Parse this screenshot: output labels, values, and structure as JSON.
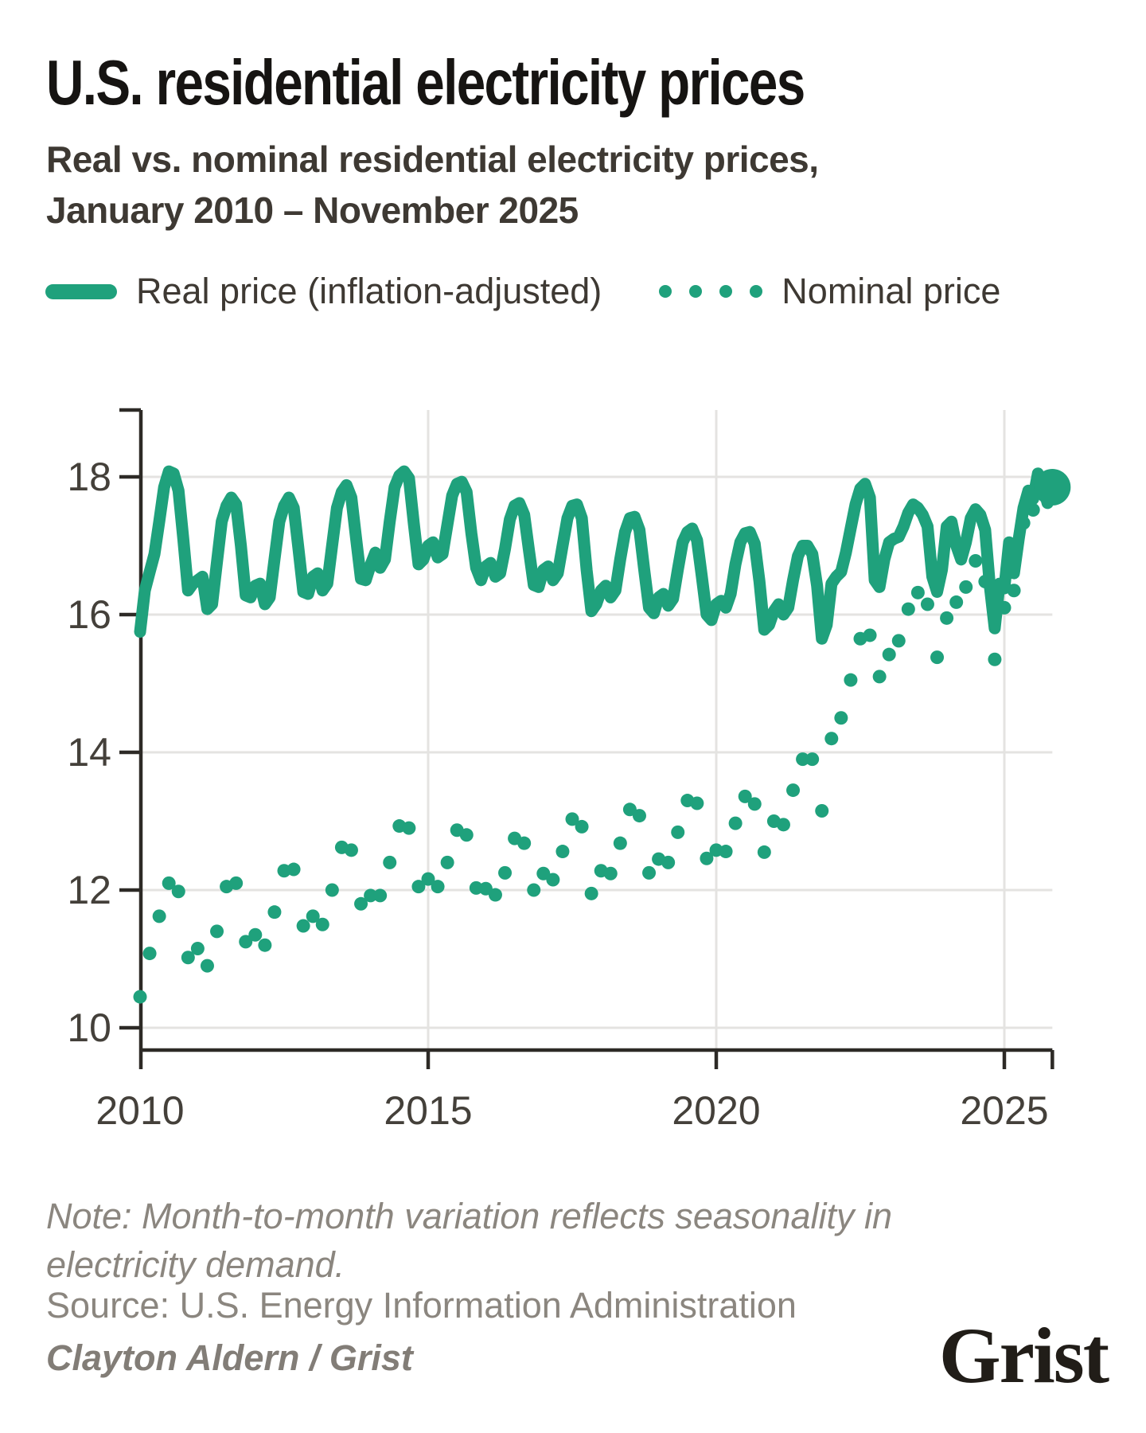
{
  "header": {
    "title": "U.S. residential electricity prices",
    "subtitle_line1": "Real vs. nominal residential electricity prices,",
    "subtitle_line2": "January 2010 – November 2025"
  },
  "legend": {
    "real_label": "Real price (inflation-adjusted)",
    "nominal_label": "Nominal price"
  },
  "footer": {
    "note_line1": "Note: Month-to-month variation reflects seasonality in",
    "note_line2": "electricity demand.",
    "source": "Source: U.S. Energy Information Administration",
    "credit": "Clayton Aldern / Grist",
    "logo": "Grist"
  },
  "colors": {
    "accent_green": "#1FA17C",
    "axis": "#2D2A26",
    "grid": "#E4E3E1",
    "tick_label": "#44403A",
    "title": "#161412",
    "subtitle": "#3E3933",
    "muted": "#8B867F"
  },
  "chart_data": {
    "type": "line",
    "title": "U.S. residential electricity prices",
    "x_start": "2010-01",
    "x_end": "2025-11",
    "frequency": "monthly",
    "xticks": [
      2010,
      2015,
      2020,
      2025
    ],
    "yticks": [
      18,
      16,
      14,
      12,
      10
    ],
    "ylim": [
      9.6,
      19.0
    ],
    "grid": true,
    "legend_position": "top",
    "end_marker_value": 17.85,
    "series": [
      {
        "name": "Real price (inflation-adjusted)",
        "style": "solid-line",
        "values": [
          15.75,
          16.35,
          16.62,
          16.88,
          17.35,
          17.85,
          18.08,
          18.05,
          17.8,
          17.1,
          16.35,
          16.45,
          16.5,
          16.55,
          16.08,
          16.15,
          16.75,
          17.35,
          17.58,
          17.7,
          17.6,
          17.0,
          16.28,
          16.25,
          16.42,
          16.45,
          16.15,
          16.25,
          16.8,
          17.35,
          17.58,
          17.7,
          17.55,
          16.95,
          16.33,
          16.3,
          16.55,
          16.6,
          16.35,
          16.45,
          17.0,
          17.55,
          17.78,
          17.88,
          17.7,
          17.1,
          16.52,
          16.5,
          16.72,
          16.9,
          16.68,
          16.8,
          17.35,
          17.85,
          18.02,
          18.08,
          17.98,
          17.33,
          16.73,
          16.8,
          17.0,
          17.05,
          16.83,
          16.88,
          17.3,
          17.73,
          17.9,
          17.93,
          17.78,
          17.18,
          16.68,
          16.5,
          16.7,
          16.75,
          16.55,
          16.6,
          16.95,
          17.38,
          17.58,
          17.62,
          17.45,
          16.93,
          16.43,
          16.4,
          16.65,
          16.7,
          16.5,
          16.6,
          17.0,
          17.4,
          17.58,
          17.6,
          17.4,
          16.65,
          16.05,
          16.15,
          16.35,
          16.42,
          16.25,
          16.35,
          16.8,
          17.2,
          17.4,
          17.42,
          17.23,
          16.65,
          16.1,
          16.02,
          16.25,
          16.3,
          16.13,
          16.23,
          16.65,
          17.05,
          17.2,
          17.25,
          17.08,
          16.55,
          16.0,
          15.92,
          16.15,
          16.2,
          16.1,
          16.3,
          16.73,
          17.05,
          17.18,
          17.2,
          17.03,
          16.48,
          15.78,
          15.85,
          16.05,
          16.15,
          16.0,
          16.1,
          16.5,
          16.85,
          17.0,
          17.0,
          16.88,
          16.42,
          15.65,
          15.85,
          16.45,
          16.55,
          16.62,
          16.9,
          17.25,
          17.6,
          17.83,
          17.9,
          17.7,
          16.5,
          16.4,
          16.8,
          17.05,
          17.1,
          17.13,
          17.28,
          17.48,
          17.6,
          17.55,
          17.45,
          17.28,
          16.55,
          16.33,
          16.65,
          17.28,
          17.35,
          17.0,
          16.8,
          17.05,
          17.4,
          17.53,
          17.45,
          17.23,
          16.4,
          15.8,
          16.45,
          16.38,
          17.05,
          16.6,
          17.1,
          17.55,
          17.8,
          17.68,
          18.05,
          17.88,
          17.62,
          17.85
        ]
      },
      {
        "name": "Nominal price",
        "style": "dotted",
        "values": [
          10.45,
          10.92,
          11.08,
          11.28,
          11.62,
          11.98,
          12.1,
          12.12,
          11.98,
          11.52,
          11.02,
          11.08,
          11.15,
          11.2,
          10.9,
          10.98,
          11.4,
          11.85,
          12.05,
          12.15,
          12.1,
          11.72,
          11.25,
          11.22,
          11.35,
          11.4,
          11.2,
          11.28,
          11.68,
          12.08,
          12.28,
          12.38,
          12.3,
          11.9,
          11.48,
          11.45,
          11.62,
          11.66,
          11.5,
          11.6,
          12.0,
          12.42,
          12.62,
          12.7,
          12.58,
          12.17,
          11.8,
          11.76,
          11.92,
          12.06,
          11.92,
          12.0,
          12.4,
          12.78,
          12.93,
          12.98,
          12.9,
          12.45,
          12.05,
          12.08,
          12.16,
          12.2,
          12.05,
          12.1,
          12.4,
          12.73,
          12.87,
          12.9,
          12.8,
          12.38,
          12.03,
          11.92,
          12.02,
          12.06,
          11.93,
          11.98,
          12.25,
          12.58,
          12.75,
          12.8,
          12.68,
          12.33,
          12.0,
          12.0,
          12.24,
          12.28,
          12.15,
          12.24,
          12.56,
          12.88,
          13.03,
          13.05,
          12.92,
          12.38,
          11.95,
          12.08,
          12.28,
          12.34,
          12.24,
          12.32,
          12.68,
          13.0,
          13.17,
          13.2,
          13.08,
          12.65,
          12.25,
          12.24,
          12.45,
          12.5,
          12.4,
          12.5,
          12.84,
          13.17,
          13.3,
          13.36,
          13.26,
          12.87,
          12.46,
          12.4,
          12.58,
          12.63,
          12.56,
          12.62,
          12.97,
          13.23,
          13.36,
          13.38,
          13.25,
          12.9,
          12.55,
          12.6,
          13.0,
          13.05,
          12.95,
          13.1,
          13.45,
          13.75,
          13.9,
          13.95,
          13.9,
          13.6,
          13.15,
          13.5,
          14.2,
          14.35,
          14.5,
          14.75,
          15.05,
          15.4,
          15.65,
          15.8,
          15.7,
          15.35,
          15.1,
          15.2,
          15.42,
          15.52,
          15.62,
          15.82,
          16.08,
          16.28,
          16.32,
          16.28,
          16.15,
          15.6,
          15.38,
          15.55,
          15.95,
          16.08,
          16.18,
          16.05,
          16.4,
          16.65,
          16.78,
          16.7,
          16.48,
          15.7,
          15.35,
          15.68,
          16.1,
          16.72,
          16.35,
          16.88,
          17.33,
          17.62,
          17.52,
          17.93,
          17.83,
          17.58,
          17.85
        ]
      }
    ]
  }
}
